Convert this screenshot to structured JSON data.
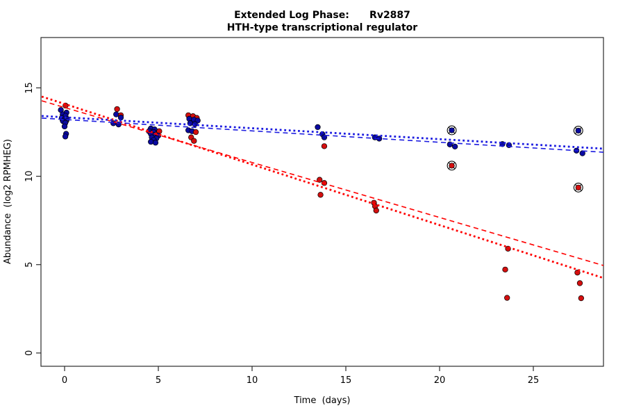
{
  "figure": {
    "title_line1": "Extended Log Phase:      Rv2887",
    "title_line2": "HTH-type transcriptional regulator",
    "xlabel": "Time  (days)",
    "ylabel": "Abundance  (log2 RPMHEG)"
  },
  "chart_data": {
    "type": "scatter",
    "title": "Extended Log Phase: Rv2887 — HTH-type transcriptional regulator",
    "xlabel": "Time (days)",
    "ylabel": "Abundance (log2 RPMHEG)",
    "xlim": [
      -1.2,
      28.8
    ],
    "ylim": [
      -0.75,
      17.85
    ],
    "grid": false,
    "legend": "none",
    "x_ticks": [
      0,
      5,
      10,
      15,
      20,
      25
    ],
    "y_ticks": [
      0,
      5,
      10,
      15
    ],
    "colors": {
      "red_point": "#d40f0f",
      "blue_point": "#0a0aa0",
      "red_line": "#ff0000",
      "blue_line": "#1b1be0",
      "ring": "#000000",
      "axis": "#2a2a2a"
    },
    "trend_lines": [
      {
        "name": "red-dashed-fit",
        "color": "#ff0000",
        "style": "dashed",
        "x1": -1.22,
        "y1": 14.27,
        "x2": 28.78,
        "y2": 4.95
      },
      {
        "name": "red-dotted-fit",
        "color": "#ff0000",
        "style": "dotted",
        "x1": -1.22,
        "y1": 14.51,
        "x2": 28.78,
        "y2": 4.24
      },
      {
        "name": "blue-dashed-fit",
        "color": "#1b1be0",
        "style": "dashed",
        "x1": -1.22,
        "y1": 13.29,
        "x2": 28.78,
        "y2": 11.36
      },
      {
        "name": "blue-dotted-fit",
        "color": "#1b1be0",
        "style": "dotted",
        "x1": -1.22,
        "y1": 13.41,
        "x2": 28.78,
        "y2": 11.56
      }
    ],
    "points": [
      {
        "d": 0.05,
        "v": 14.0,
        "c": "red"
      },
      {
        "d": -0.2,
        "v": 13.75,
        "c": "blue"
      },
      {
        "d": 0.1,
        "v": 13.6,
        "c": "blue"
      },
      {
        "d": -0.1,
        "v": 13.5,
        "c": "blue"
      },
      {
        "d": 0.05,
        "v": 13.42,
        "c": "blue"
      },
      {
        "d": -0.15,
        "v": 13.3,
        "c": "blue"
      },
      {
        "d": 0.12,
        "v": 13.25,
        "c": "blue"
      },
      {
        "d": 0.0,
        "v": 13.2,
        "c": "blue",
        "circled": true
      },
      {
        "d": -0.08,
        "v": 13.12,
        "c": "blue"
      },
      {
        "d": 0.04,
        "v": 13.02,
        "c": "blue"
      },
      {
        "d": 0.0,
        "v": 12.82,
        "c": "blue"
      },
      {
        "d": 0.08,
        "v": 12.4,
        "c": "blue"
      },
      {
        "d": 0.04,
        "v": 12.25,
        "c": "blue"
      },
      {
        "d": 2.8,
        "v": 13.8,
        "c": "red"
      },
      {
        "d": 2.75,
        "v": 13.5,
        "c": "blue"
      },
      {
        "d": 3.0,
        "v": 13.45,
        "c": "red"
      },
      {
        "d": 3.0,
        "v": 13.32,
        "c": "blue"
      },
      {
        "d": 2.6,
        "v": 13.0,
        "c": "blue"
      },
      {
        "d": 2.88,
        "v": 12.93,
        "c": "blue"
      },
      {
        "d": 4.6,
        "v": 12.7,
        "c": "blue"
      },
      {
        "d": 4.8,
        "v": 12.65,
        "c": "blue"
      },
      {
        "d": 4.5,
        "v": 12.55,
        "c": "blue"
      },
      {
        "d": 5.05,
        "v": 12.55,
        "c": "red"
      },
      {
        "d": 4.75,
        "v": 12.5,
        "c": "blue"
      },
      {
        "d": 4.6,
        "v": 12.4,
        "c": "blue"
      },
      {
        "d": 4.85,
        "v": 12.35,
        "c": "blue"
      },
      {
        "d": 5.0,
        "v": 12.3,
        "c": "blue"
      },
      {
        "d": 4.65,
        "v": 12.2,
        "c": "blue"
      },
      {
        "d": 4.9,
        "v": 12.15,
        "c": "blue"
      },
      {
        "d": 4.75,
        "v": 12.05,
        "c": "blue"
      },
      {
        "d": 4.6,
        "v": 11.95,
        "c": "blue"
      },
      {
        "d": 4.85,
        "v": 11.9,
        "c": "blue"
      },
      {
        "d": 6.6,
        "v": 13.45,
        "c": "red"
      },
      {
        "d": 6.85,
        "v": 13.4,
        "c": "red"
      },
      {
        "d": 7.05,
        "v": 13.3,
        "c": "red"
      },
      {
        "d": 6.65,
        "v": 13.25,
        "c": "blue"
      },
      {
        "d": 6.9,
        "v": 13.2,
        "c": "blue"
      },
      {
        "d": 7.1,
        "v": 13.15,
        "c": "blue"
      },
      {
        "d": 6.7,
        "v": 13.0,
        "c": "blue"
      },
      {
        "d": 6.95,
        "v": 12.95,
        "c": "blue"
      },
      {
        "d": 6.6,
        "v": 12.6,
        "c": "blue"
      },
      {
        "d": 6.8,
        "v": 12.55,
        "c": "blue"
      },
      {
        "d": 7.0,
        "v": 12.5,
        "c": "red"
      },
      {
        "d": 6.75,
        "v": 12.2,
        "c": "red"
      },
      {
        "d": 6.9,
        "v": 12.0,
        "c": "red"
      },
      {
        "d": 13.5,
        "v": 12.78,
        "c": "blue"
      },
      {
        "d": 13.75,
        "v": 12.38,
        "c": "blue"
      },
      {
        "d": 13.85,
        "v": 12.2,
        "c": "blue"
      },
      {
        "d": 13.85,
        "v": 11.7,
        "c": "red"
      },
      {
        "d": 13.6,
        "v": 9.8,
        "c": "red"
      },
      {
        "d": 13.85,
        "v": 9.62,
        "c": "red"
      },
      {
        "d": 13.65,
        "v": 8.95,
        "c": "red"
      },
      {
        "d": 16.55,
        "v": 12.2,
        "c": "blue"
      },
      {
        "d": 16.78,
        "v": 12.13,
        "c": "blue"
      },
      {
        "d": 16.5,
        "v": 8.5,
        "c": "red"
      },
      {
        "d": 16.56,
        "v": 8.3,
        "c": "red"
      },
      {
        "d": 16.62,
        "v": 8.06,
        "c": "red"
      },
      {
        "d": 20.65,
        "v": 12.6,
        "c": "blue",
        "circled": true
      },
      {
        "d": 20.55,
        "v": 11.8,
        "c": "blue"
      },
      {
        "d": 20.82,
        "v": 11.68,
        "c": "blue"
      },
      {
        "d": 20.65,
        "v": 10.6,
        "c": "red",
        "circled": true
      },
      {
        "d": 23.35,
        "v": 11.82,
        "c": "blue"
      },
      {
        "d": 23.7,
        "v": 11.76,
        "c": "blue"
      },
      {
        "d": 23.65,
        "v": 5.9,
        "c": "red"
      },
      {
        "d": 23.5,
        "v": 4.72,
        "c": "red"
      },
      {
        "d": 23.6,
        "v": 3.12,
        "c": "red"
      },
      {
        "d": 27.4,
        "v": 12.58,
        "c": "blue",
        "circled": true
      },
      {
        "d": 27.3,
        "v": 11.45,
        "c": "blue"
      },
      {
        "d": 27.62,
        "v": 11.3,
        "c": "blue"
      },
      {
        "d": 27.4,
        "v": 9.36,
        "c": "red",
        "circled": true
      },
      {
        "d": 27.35,
        "v": 4.55,
        "c": "red"
      },
      {
        "d": 27.48,
        "v": 3.95,
        "c": "red"
      },
      {
        "d": 27.55,
        "v": 3.1,
        "c": "red"
      }
    ]
  }
}
